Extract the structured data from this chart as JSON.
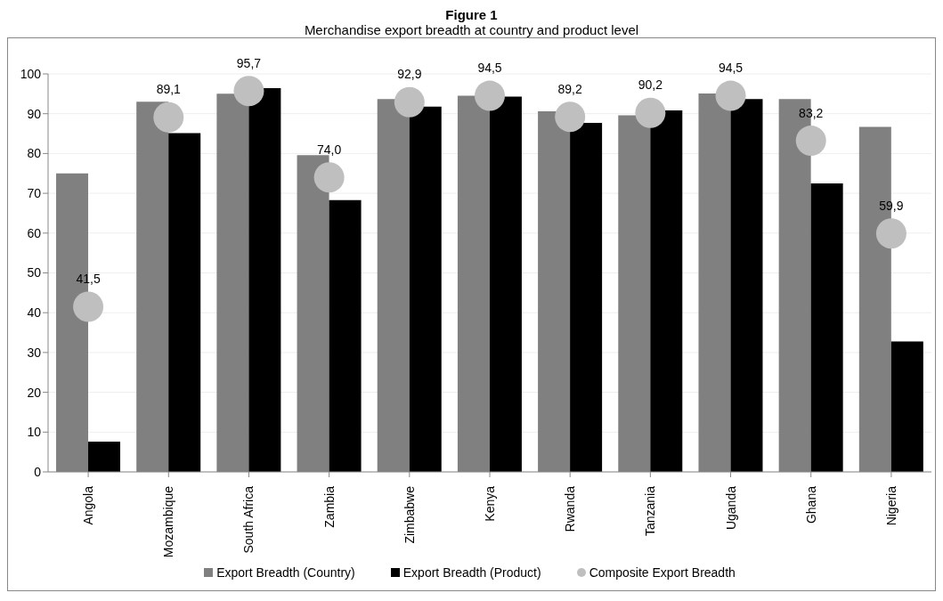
{
  "chart_data": {
    "type": "bar",
    "title": "Figure 1",
    "subtitle": "Merchandise export breadth at country and product level",
    "categories": [
      "Angola",
      "Mozambique",
      "South Africa",
      "Zambia",
      "Zimbabwe",
      "Kenya",
      "Rwanda",
      "Tanzania",
      "Uganda",
      "Ghana",
      "Nigeria"
    ],
    "series": [
      {
        "name": "Export Breadth (Country)",
        "color": "#808080",
        "values": [
          75.0,
          93.0,
          95.0,
          79.6,
          93.7,
          94.5,
          90.6,
          89.6,
          95.1,
          93.7,
          86.7
        ]
      },
      {
        "name": "Export Breadth (Product)",
        "color": "#000000",
        "values": [
          7.6,
          85.1,
          96.4,
          68.3,
          91.8,
          94.3,
          87.7,
          90.8,
          93.7,
          72.5,
          32.8
        ]
      },
      {
        "name": "Composite Export Breadth",
        "type": "scatter",
        "color": "#bfbfbf",
        "marker": "circle",
        "values": [
          41.5,
          89.1,
          95.7,
          74.0,
          92.9,
          94.5,
          89.2,
          90.2,
          94.5,
          83.2,
          59.9
        ],
        "value_labels": [
          "41,5",
          "89,1",
          "95,7",
          "74,0",
          "92,9",
          "94,5",
          "89,2",
          "90,2",
          "94,5",
          "83,2",
          "59,9"
        ]
      }
    ],
    "ylim": [
      0,
      100
    ],
    "yticks": [
      0,
      10,
      20,
      30,
      40,
      50,
      60,
      70,
      80,
      90,
      100
    ],
    "grid": "y",
    "legend": "bottom"
  }
}
